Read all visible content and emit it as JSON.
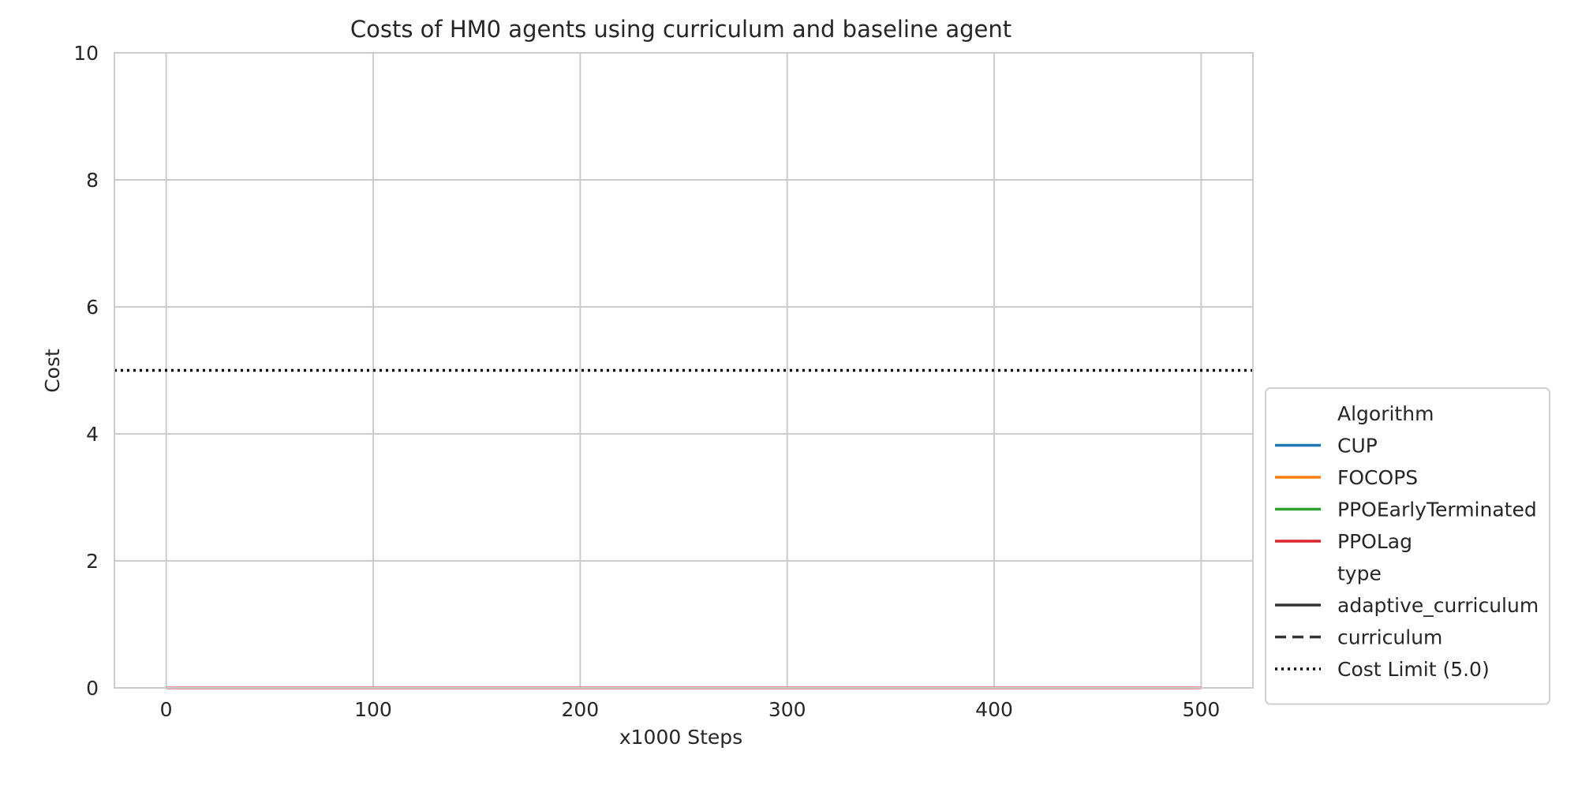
{
  "chart_data": {
    "type": "line",
    "title": "Costs of HM0 agents using curriculum and baseline agent",
    "xlabel": "x1000 Steps",
    "ylabel": "Cost",
    "xlim": [
      -25,
      525
    ],
    "ylim": [
      0,
      10
    ],
    "xticks": [
      0,
      100,
      200,
      300,
      400,
      500
    ],
    "yticks": [
      0,
      2,
      4,
      6,
      8,
      10
    ],
    "grid": true,
    "x": [
      0,
      100,
      200,
      300,
      400,
      500
    ],
    "series": [
      {
        "name": "CUP",
        "type": "adaptive_curriculum",
        "color": "#1f77b4",
        "dash": "solid",
        "values": [
          0,
          0,
          0,
          0,
          0,
          0
        ]
      },
      {
        "name": "FOCOPS",
        "type": "adaptive_curriculum",
        "color": "#ff7f0e",
        "dash": "solid",
        "values": [
          0,
          0,
          0,
          0,
          0,
          0
        ]
      },
      {
        "name": "PPOEarlyTerminated",
        "type": "adaptive_curriculum",
        "color": "#2ca02c",
        "dash": "solid",
        "values": [
          0,
          0,
          0,
          0,
          0,
          0
        ]
      },
      {
        "name": "PPOLag",
        "type": "adaptive_curriculum",
        "color": "#d62728",
        "dash": "solid",
        "values": [
          0,
          0,
          0,
          0,
          0,
          0
        ]
      },
      {
        "name": "CUP",
        "type": "curriculum",
        "color": "#1f77b4",
        "dash": "dashed",
        "values": [
          0,
          0,
          0,
          0,
          0,
          0
        ]
      },
      {
        "name": "FOCOPS",
        "type": "curriculum",
        "color": "#ff7f0e",
        "dash": "dashed",
        "values": [
          0,
          0,
          0,
          0,
          0,
          0
        ]
      },
      {
        "name": "PPOEarlyTerminated",
        "type": "curriculum",
        "color": "#2ca02c",
        "dash": "dashed",
        "values": [
          0,
          0,
          0,
          0,
          0,
          0
        ]
      },
      {
        "name": "PPOLag",
        "type": "curriculum",
        "color": "#d62728",
        "dash": "dashed",
        "values": [
          0,
          0,
          0,
          0,
          0,
          0
        ]
      }
    ],
    "reference_line": {
      "label": "Cost Limit (5.0)",
      "y": 5.0,
      "color": "#000000",
      "dash": "dotted"
    },
    "legend": {
      "placement": "outside-right",
      "items": [
        {
          "label": "Algorithm",
          "kind": "header"
        },
        {
          "label": "CUP",
          "kind": "line",
          "color": "#1f77b4",
          "dash": "solid"
        },
        {
          "label": "FOCOPS",
          "kind": "line",
          "color": "#ff7f0e",
          "dash": "solid"
        },
        {
          "label": "PPOEarlyTerminated",
          "kind": "line",
          "color": "#2ca02c",
          "dash": "solid"
        },
        {
          "label": "PPOLag",
          "kind": "line",
          "color": "#d62728",
          "dash": "solid"
        },
        {
          "label": "type",
          "kind": "header"
        },
        {
          "label": "adaptive_curriculum",
          "kind": "line",
          "color": "#333333",
          "dash": "solid"
        },
        {
          "label": "curriculum",
          "kind": "line",
          "color": "#333333",
          "dash": "dashed"
        },
        {
          "label": "Cost Limit (5.0)",
          "kind": "line",
          "color": "#000000",
          "dash": "dotted"
        }
      ]
    }
  }
}
